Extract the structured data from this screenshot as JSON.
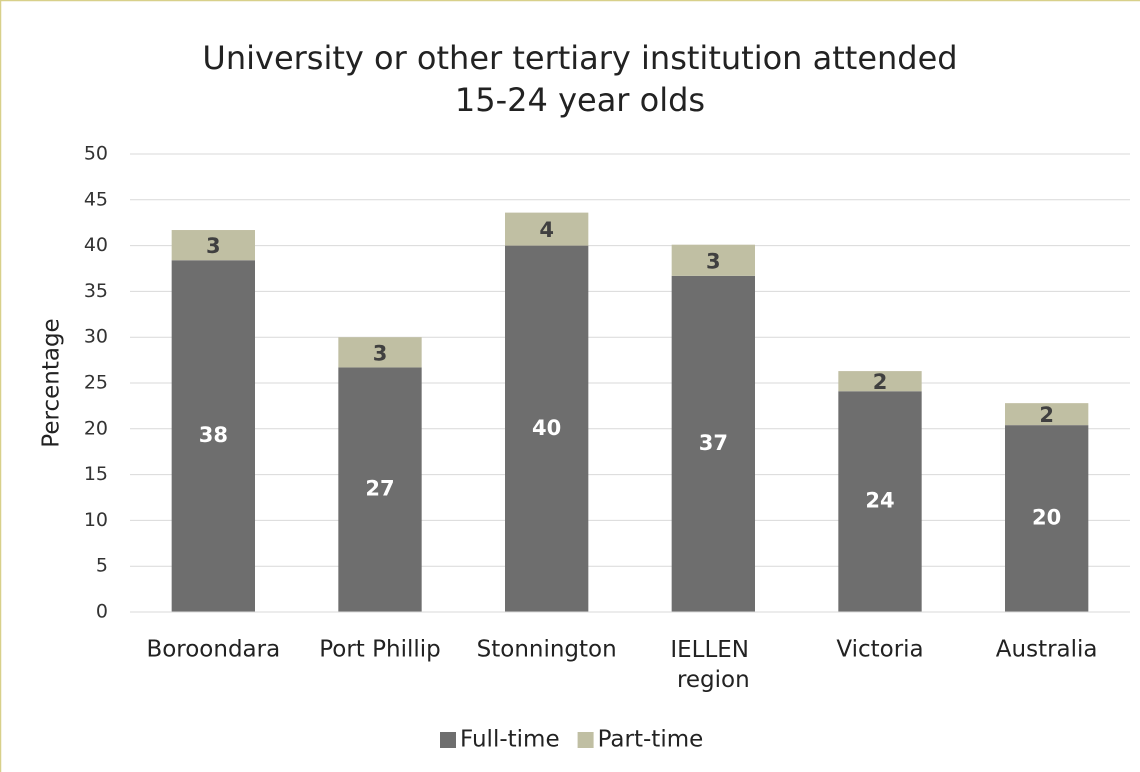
{
  "chart_data": {
    "type": "stacked_bar",
    "title": "University or other tertiary institution attended",
    "subtitle": "15-24 year olds",
    "y_label": "Percentage",
    "categories": [
      "Boroondara",
      "Port Phillip",
      "Stonnington",
      "IELLEN region",
      "Victoria",
      "Australia"
    ],
    "series": [
      {
        "name": "Full-time",
        "color": "#6e6e6e",
        "values": [
          38.4,
          26.7,
          40.0,
          36.7,
          24.1,
          20.4
        ],
        "value_labels": [
          "38",
          "27",
          "40",
          "37",
          "24",
          "20"
        ]
      },
      {
        "name": "Part-time",
        "color": "#c0bfa3",
        "values": [
          3.3,
          3.3,
          3.6,
          3.4,
          2.2,
          2.4
        ],
        "value_labels": [
          "3",
          "3",
          "4",
          "3",
          "2",
          "2"
        ]
      }
    ],
    "ylim": [
      0,
      50
    ],
    "yticks": [
      0,
      5,
      10,
      15,
      20,
      25,
      30,
      35,
      40,
      45,
      50
    ],
    "grid": true,
    "legend": "bottom"
  }
}
